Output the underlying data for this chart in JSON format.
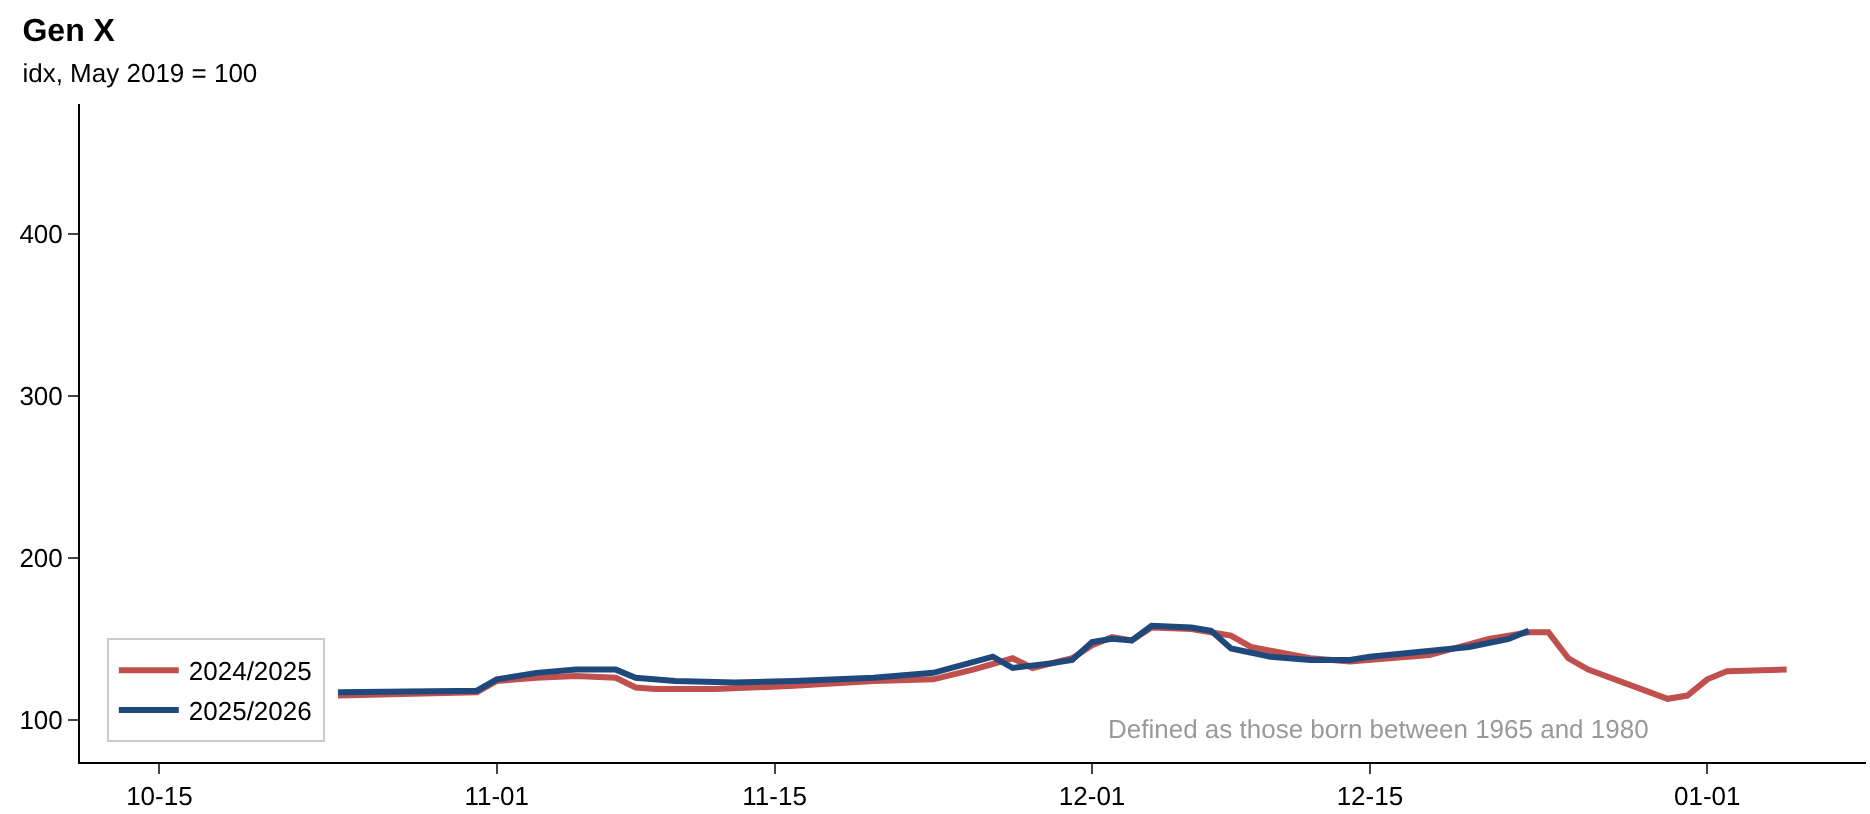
{
  "chart_data": {
    "type": "line",
    "title": "Gen X",
    "subtitle": "idx, May 2019 = 100",
    "annotations": [
      "Defined as those born between 1965 and 1980"
    ],
    "series": [
      {
        "name": "2024/2025",
        "color": "#c0504d",
        "x": [
          "2024-10-24",
          "2024-10-31",
          "2024-11-01",
          "2024-11-03",
          "2024-11-05",
          "2024-11-07",
          "2024-11-08",
          "2024-11-09",
          "2024-11-12",
          "2024-11-16",
          "2024-11-20",
          "2024-11-23",
          "2024-11-25",
          "2024-11-27",
          "2024-11-28",
          "2024-11-30",
          "2024-12-01",
          "2024-12-02",
          "2024-12-03",
          "2024-12-04",
          "2024-12-06",
          "2024-12-08",
          "2024-12-09",
          "2024-12-12",
          "2024-12-14",
          "2024-12-18",
          "2024-12-21",
          "2024-12-23",
          "2024-12-24",
          "2024-12-25",
          "2024-12-26",
          "2024-12-30",
          "2024-12-31",
          "2025-01-01",
          "2025-01-02",
          "2025-01-05"
        ],
        "values": [
          115,
          117,
          124,
          126,
          127,
          126,
          120,
          119,
          119,
          121,
          124,
          125,
          131,
          138,
          132,
          138,
          146,
          151,
          149,
          157,
          156,
          152,
          145,
          138,
          136,
          140,
          150,
          154,
          154,
          138,
          131,
          113,
          115,
          125,
          130,
          131
        ]
      },
      {
        "name": "2025/2026",
        "color": "#1f497d",
        "x": [
          "2024-10-24",
          "2024-10-31",
          "2024-11-01",
          "2024-11-03",
          "2024-11-05",
          "2024-11-07",
          "2024-11-08",
          "2024-11-10",
          "2024-11-13",
          "2024-11-16",
          "2024-11-20",
          "2024-11-23",
          "2024-11-26",
          "2024-11-27",
          "2024-11-29",
          "2024-11-30",
          "2024-12-01",
          "2024-12-02",
          "2024-12-03",
          "2024-12-04",
          "2024-12-06",
          "2024-12-07",
          "2024-12-08",
          "2024-12-10",
          "2024-12-12",
          "2024-12-14",
          "2024-12-15",
          "2024-12-20",
          "2024-12-22",
          "2024-12-23"
        ],
        "values": [
          117,
          118,
          125,
          129,
          131,
          131,
          126,
          124,
          123,
          124,
          126,
          129,
          139,
          132,
          135,
          137,
          148,
          150,
          149,
          158,
          157,
          155,
          144,
          139,
          137,
          137,
          139,
          145,
          150,
          155
        ]
      }
    ],
    "xlim": [
      "2024-10-11",
      "2025-01-09"
    ],
    "xticks": [
      {
        "value": "2024-10-15",
        "label": "10-15"
      },
      {
        "value": "2024-11-01",
        "label": "11-01"
      },
      {
        "value": "2024-11-15",
        "label": "11-15"
      },
      {
        "value": "2024-12-01",
        "label": "12-01"
      },
      {
        "value": "2024-12-15",
        "label": "12-15"
      },
      {
        "value": "2025-01-01",
        "label": "01-01"
      }
    ],
    "ylim": [
      74,
      480
    ],
    "yticks": [
      100,
      200,
      300,
      400
    ],
    "grid": false,
    "legend": "bottom left",
    "marker": "none",
    "line_style": "solid"
  }
}
